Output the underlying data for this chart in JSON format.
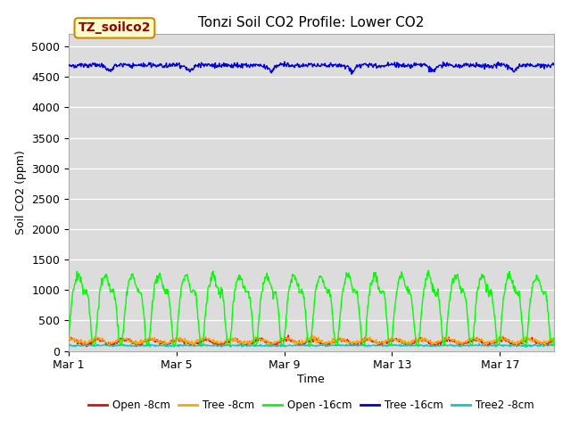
{
  "title": "Tonzi Soil CO2 Profile: Lower CO2",
  "xlabel": "Time",
  "ylabel": "Soil CO2 (ppm)",
  "ylim": [
    0,
    5200
  ],
  "yticks": [
    0,
    500,
    1000,
    1500,
    2000,
    2500,
    3000,
    3500,
    4000,
    4500,
    5000
  ],
  "xtick_labels": [
    "Mar 1",
    "Mar 5",
    "Mar 9",
    "Mar 13",
    "Mar 17"
  ],
  "xtick_positions": [
    0,
    4,
    8,
    12,
    16
  ],
  "num_days": 18,
  "samples_per_day": 48,
  "series": {
    "open_8cm": {
      "color": "#ff0000",
      "label": "Open -8cm"
    },
    "tree_8cm": {
      "color": "#ffa500",
      "label": "Tree -8cm"
    },
    "open_16cm": {
      "color": "#00ff00",
      "label": "Open -16cm"
    },
    "tree_16cm": {
      "color": "#0000dd",
      "label": "Tree -16cm"
    },
    "tree2_8cm": {
      "color": "#00cccc",
      "label": "Tree2 -8cm"
    }
  },
  "legend_box_label": "TZ_soilco2",
  "legend_box_facecolor": "#ffffcc",
  "legend_box_edgecolor": "#cc8800",
  "legend_box_text_color": "#990000",
  "bg_color": "#dcdcdc",
  "fig_bg_color": "#ffffff",
  "linewidth": 1.0,
  "title_fontsize": 11
}
